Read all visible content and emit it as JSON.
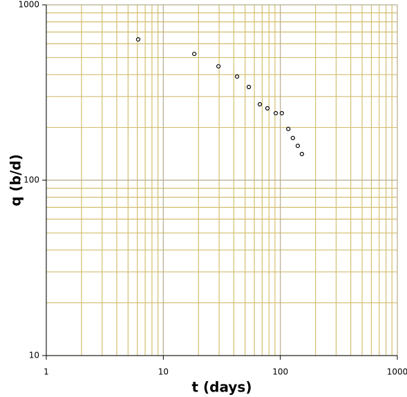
{
  "chart_data": {
    "type": "scatter",
    "xlabel": "t (days)",
    "ylabel": "q (b/d)",
    "x": [
      6.1,
      18.4,
      29.6,
      42.7,
      53.8,
      66.8,
      77.6,
      91.4,
      103,
      117,
      128,
      141,
      153
    ],
    "values": [
      635,
      525,
      446,
      390,
      340,
      271,
      257,
      241,
      241,
      196,
      174,
      157,
      141
    ],
    "color": "#000000",
    "xlim": [
      1,
      1000
    ],
    "ylim": [
      10,
      1000
    ],
    "xticks": [
      1,
      10,
      100,
      1000
    ],
    "yticks": [
      10,
      100,
      1000
    ],
    "log_x": true,
    "log_y": true,
    "grid": true,
    "minor_grid": true,
    "grid_color": "#d2be6e",
    "major_grid_color": "#b4aa8c"
  }
}
